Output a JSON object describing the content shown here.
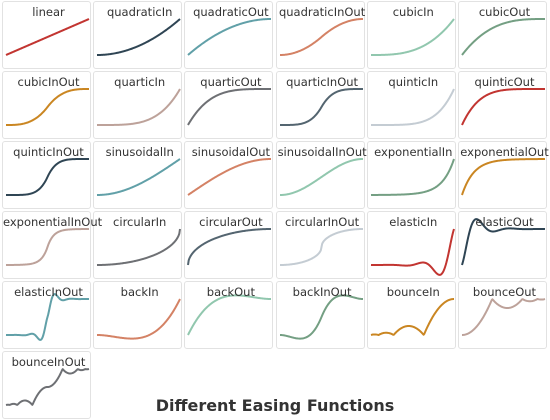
{
  "title": "Different Easing Functions",
  "chart_data": {
    "type": "line",
    "title": "Different Easing Functions",
    "x_range": [
      0,
      1
    ],
    "y_range": [
      0,
      1
    ],
    "charts": [
      {
        "name": "linear",
        "color": "#c23531"
      },
      {
        "name": "quadraticIn",
        "color": "#2f4554"
      },
      {
        "name": "quadraticOut",
        "color": "#61a0a8"
      },
      {
        "name": "quadraticInOut",
        "color": "#d48265"
      },
      {
        "name": "cubicIn",
        "color": "#91c7ae"
      },
      {
        "name": "cubicOut",
        "color": "#749f83"
      },
      {
        "name": "cubicInOut",
        "color": "#ca8622"
      },
      {
        "name": "quarticIn",
        "color": "#bda29a"
      },
      {
        "name": "quarticOut",
        "color": "#6e7074"
      },
      {
        "name": "quarticInOut",
        "color": "#546570"
      },
      {
        "name": "quinticIn",
        "color": "#c4ccd3"
      },
      {
        "name": "quinticOut",
        "color": "#c23531"
      },
      {
        "name": "quinticInOut",
        "color": "#2f4554"
      },
      {
        "name": "sinusoidalIn",
        "color": "#61a0a8"
      },
      {
        "name": "sinusoidalOut",
        "color": "#d48265"
      },
      {
        "name": "sinusoidalInOut",
        "color": "#91c7ae"
      },
      {
        "name": "exponentialIn",
        "color": "#749f83"
      },
      {
        "name": "exponentialOut",
        "color": "#ca8622"
      },
      {
        "name": "exponentialInOut",
        "color": "#bda29a"
      },
      {
        "name": "circularIn",
        "color": "#6e7074"
      },
      {
        "name": "circularOut",
        "color": "#546570"
      },
      {
        "name": "circularInOut",
        "color": "#c4ccd3"
      },
      {
        "name": "elasticIn",
        "color": "#c23531"
      },
      {
        "name": "elasticOut",
        "color": "#2f4554"
      },
      {
        "name": "elasticInOut",
        "color": "#61a0a8"
      },
      {
        "name": "backIn",
        "color": "#d48265"
      },
      {
        "name": "backOut",
        "color": "#91c7ae"
      },
      {
        "name": "backInOut",
        "color": "#749f83"
      },
      {
        "name": "bounceIn",
        "color": "#ca8622"
      },
      {
        "name": "bounceOut",
        "color": "#bda29a"
      },
      {
        "name": "bounceInOut",
        "color": "#6e7074"
      }
    ]
  }
}
